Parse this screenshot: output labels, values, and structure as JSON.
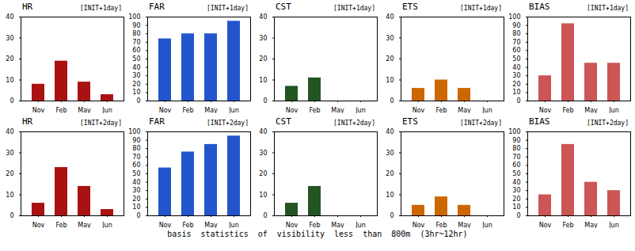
{
  "chart_data": [
    {
      "type": "bar",
      "title": "HR",
      "subtitle": "[INIT+1day]",
      "categories": [
        "Nov",
        "Feb",
        "May",
        "Jun"
      ],
      "values": [
        8,
        19,
        9,
        3
      ],
      "color": "#aa1111",
      "ylim": [
        0,
        40
      ],
      "yticks": [
        0,
        10,
        20,
        30,
        40
      ]
    },
    {
      "type": "bar",
      "title": "FAR",
      "subtitle": "[INIT+1day]",
      "categories": [
        "Nov",
        "Feb",
        "May",
        "Jun"
      ],
      "values": [
        74,
        80,
        80,
        95
      ],
      "color": "#2255cc",
      "ylim": [
        0,
        100
      ],
      "yticks": [
        0,
        10,
        20,
        30,
        40,
        50,
        60,
        70,
        80,
        90,
        100
      ]
    },
    {
      "type": "bar",
      "title": "CST",
      "subtitle": "[INIT+1day]",
      "categories": [
        "Nov",
        "Feb",
        "May",
        "Jun"
      ],
      "values": [
        7,
        11,
        0,
        0
      ],
      "color": "#225522",
      "ylim": [
        0,
        40
      ],
      "yticks": [
        0,
        10,
        20,
        30,
        40
      ]
    },
    {
      "type": "bar",
      "title": "ETS",
      "subtitle": "[INIT+1day]",
      "categories": [
        "Nov",
        "Feb",
        "May",
        "Jun"
      ],
      "values": [
        6,
        10,
        6,
        0
      ],
      "color": "#cc6600",
      "ylim": [
        0,
        40
      ],
      "yticks": [
        0,
        10,
        20,
        30,
        40
      ]
    },
    {
      "type": "bar",
      "title": "BIAS",
      "subtitle": "[INIT+1day]",
      "categories": [
        "Nov",
        "Feb",
        "May",
        "Jun"
      ],
      "values": [
        30,
        92,
        45,
        45
      ],
      "color": "#cc5555",
      "ylim": [
        0,
        100
      ],
      "yticks": [
        0,
        10,
        20,
        30,
        40,
        50,
        60,
        70,
        80,
        90,
        100
      ]
    },
    {
      "type": "bar",
      "title": "HR",
      "subtitle": "[INIT+2day]",
      "categories": [
        "Nov",
        "Feb",
        "May",
        "Jun"
      ],
      "values": [
        6,
        23,
        14,
        3
      ],
      "color": "#aa1111",
      "ylim": [
        0,
        40
      ],
      "yticks": [
        0,
        10,
        20,
        30,
        40
      ]
    },
    {
      "type": "bar",
      "title": "FAR",
      "subtitle": "[INIT+2day]",
      "categories": [
        "Nov",
        "Feb",
        "May",
        "Jun"
      ],
      "values": [
        57,
        76,
        85,
        95
      ],
      "color": "#2255cc",
      "ylim": [
        0,
        100
      ],
      "yticks": [
        0,
        10,
        20,
        30,
        40,
        50,
        60,
        70,
        80,
        90,
        100
      ]
    },
    {
      "type": "bar",
      "title": "CST",
      "subtitle": "[INIT+2day]",
      "categories": [
        "Nov",
        "Feb",
        "May",
        "Jun"
      ],
      "values": [
        6,
        14,
        0,
        0
      ],
      "color": "#225522",
      "ylim": [
        0,
        40
      ],
      "yticks": [
        0,
        10,
        20,
        30,
        40
      ],
      "xlabel": "basis  statistics  of  visibility  less  than  800m  (3hr~12hr)"
    },
    {
      "type": "bar",
      "title": "ETS",
      "subtitle": "[INIT+2day]",
      "categories": [
        "Nov",
        "Feb",
        "May",
        "Jun"
      ],
      "values": [
        5,
        9,
        5,
        0
      ],
      "color": "#cc6600",
      "ylim": [
        0,
        40
      ],
      "yticks": [
        0,
        10,
        20,
        30,
        40
      ]
    },
    {
      "type": "bar",
      "title": "BIAS",
      "subtitle": "[INIT+2day]",
      "categories": [
        "Nov",
        "Feb",
        "May",
        "Jun"
      ],
      "values": [
        25,
        85,
        40,
        30
      ],
      "color": "#cc5555",
      "ylim": [
        0,
        100
      ],
      "yticks": [
        0,
        10,
        20,
        30,
        40,
        50,
        60,
        70,
        80,
        90,
        100
      ]
    }
  ]
}
